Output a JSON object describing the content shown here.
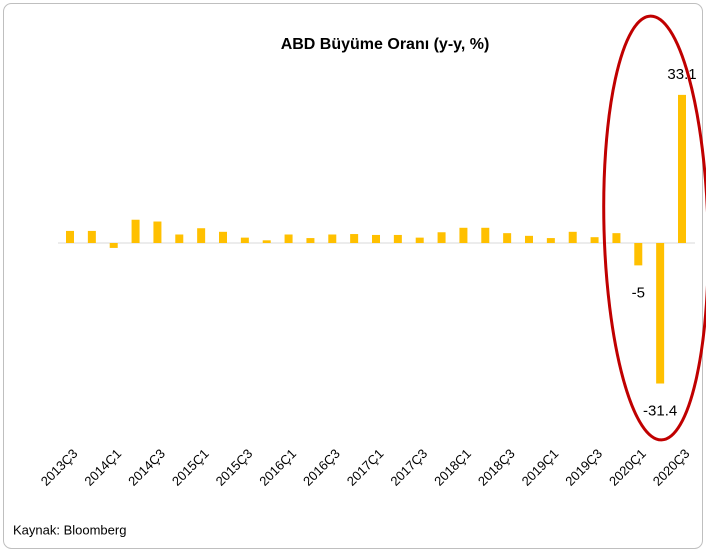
{
  "chart_data": {
    "type": "bar",
    "title": "ABD Büyüme Oranı (y-y, %)",
    "categories": [
      "2013Ç3",
      null,
      "2014Ç1",
      null,
      "2014Ç3",
      null,
      "2015Ç1",
      null,
      "2015Ç3",
      null,
      "2016Ç1",
      null,
      "2016Ç3",
      null,
      "2017Ç1",
      null,
      "2017Ç3",
      null,
      "2018Ç1",
      null,
      "2018Ç3",
      null,
      "2019Ç1",
      null,
      "2019Ç3",
      null,
      "2020Ç1",
      null,
      "2020Ç3"
    ],
    "values": [
      2.7,
      2.7,
      -1.1,
      5.2,
      4.8,
      1.9,
      3.3,
      2.5,
      1.2,
      0.6,
      1.9,
      1.1,
      1.9,
      2.0,
      1.8,
      1.8,
      1.2,
      2.4,
      3.4,
      3.4,
      2.2,
      1.6,
      1.1,
      2.5,
      1.3,
      2.2,
      -5,
      -31.4,
      33.1
    ],
    "value_labels": [
      null,
      null,
      null,
      null,
      null,
      null,
      null,
      null,
      null,
      null,
      null,
      null,
      null,
      null,
      null,
      null,
      null,
      null,
      null,
      null,
      null,
      null,
      null,
      null,
      null,
      null,
      "-5",
      "-31.4",
      "33.1"
    ],
    "color": "#ffc000",
    "ylim": [
      -40,
      40
    ],
    "source": "Kaynak: Bloomberg"
  }
}
